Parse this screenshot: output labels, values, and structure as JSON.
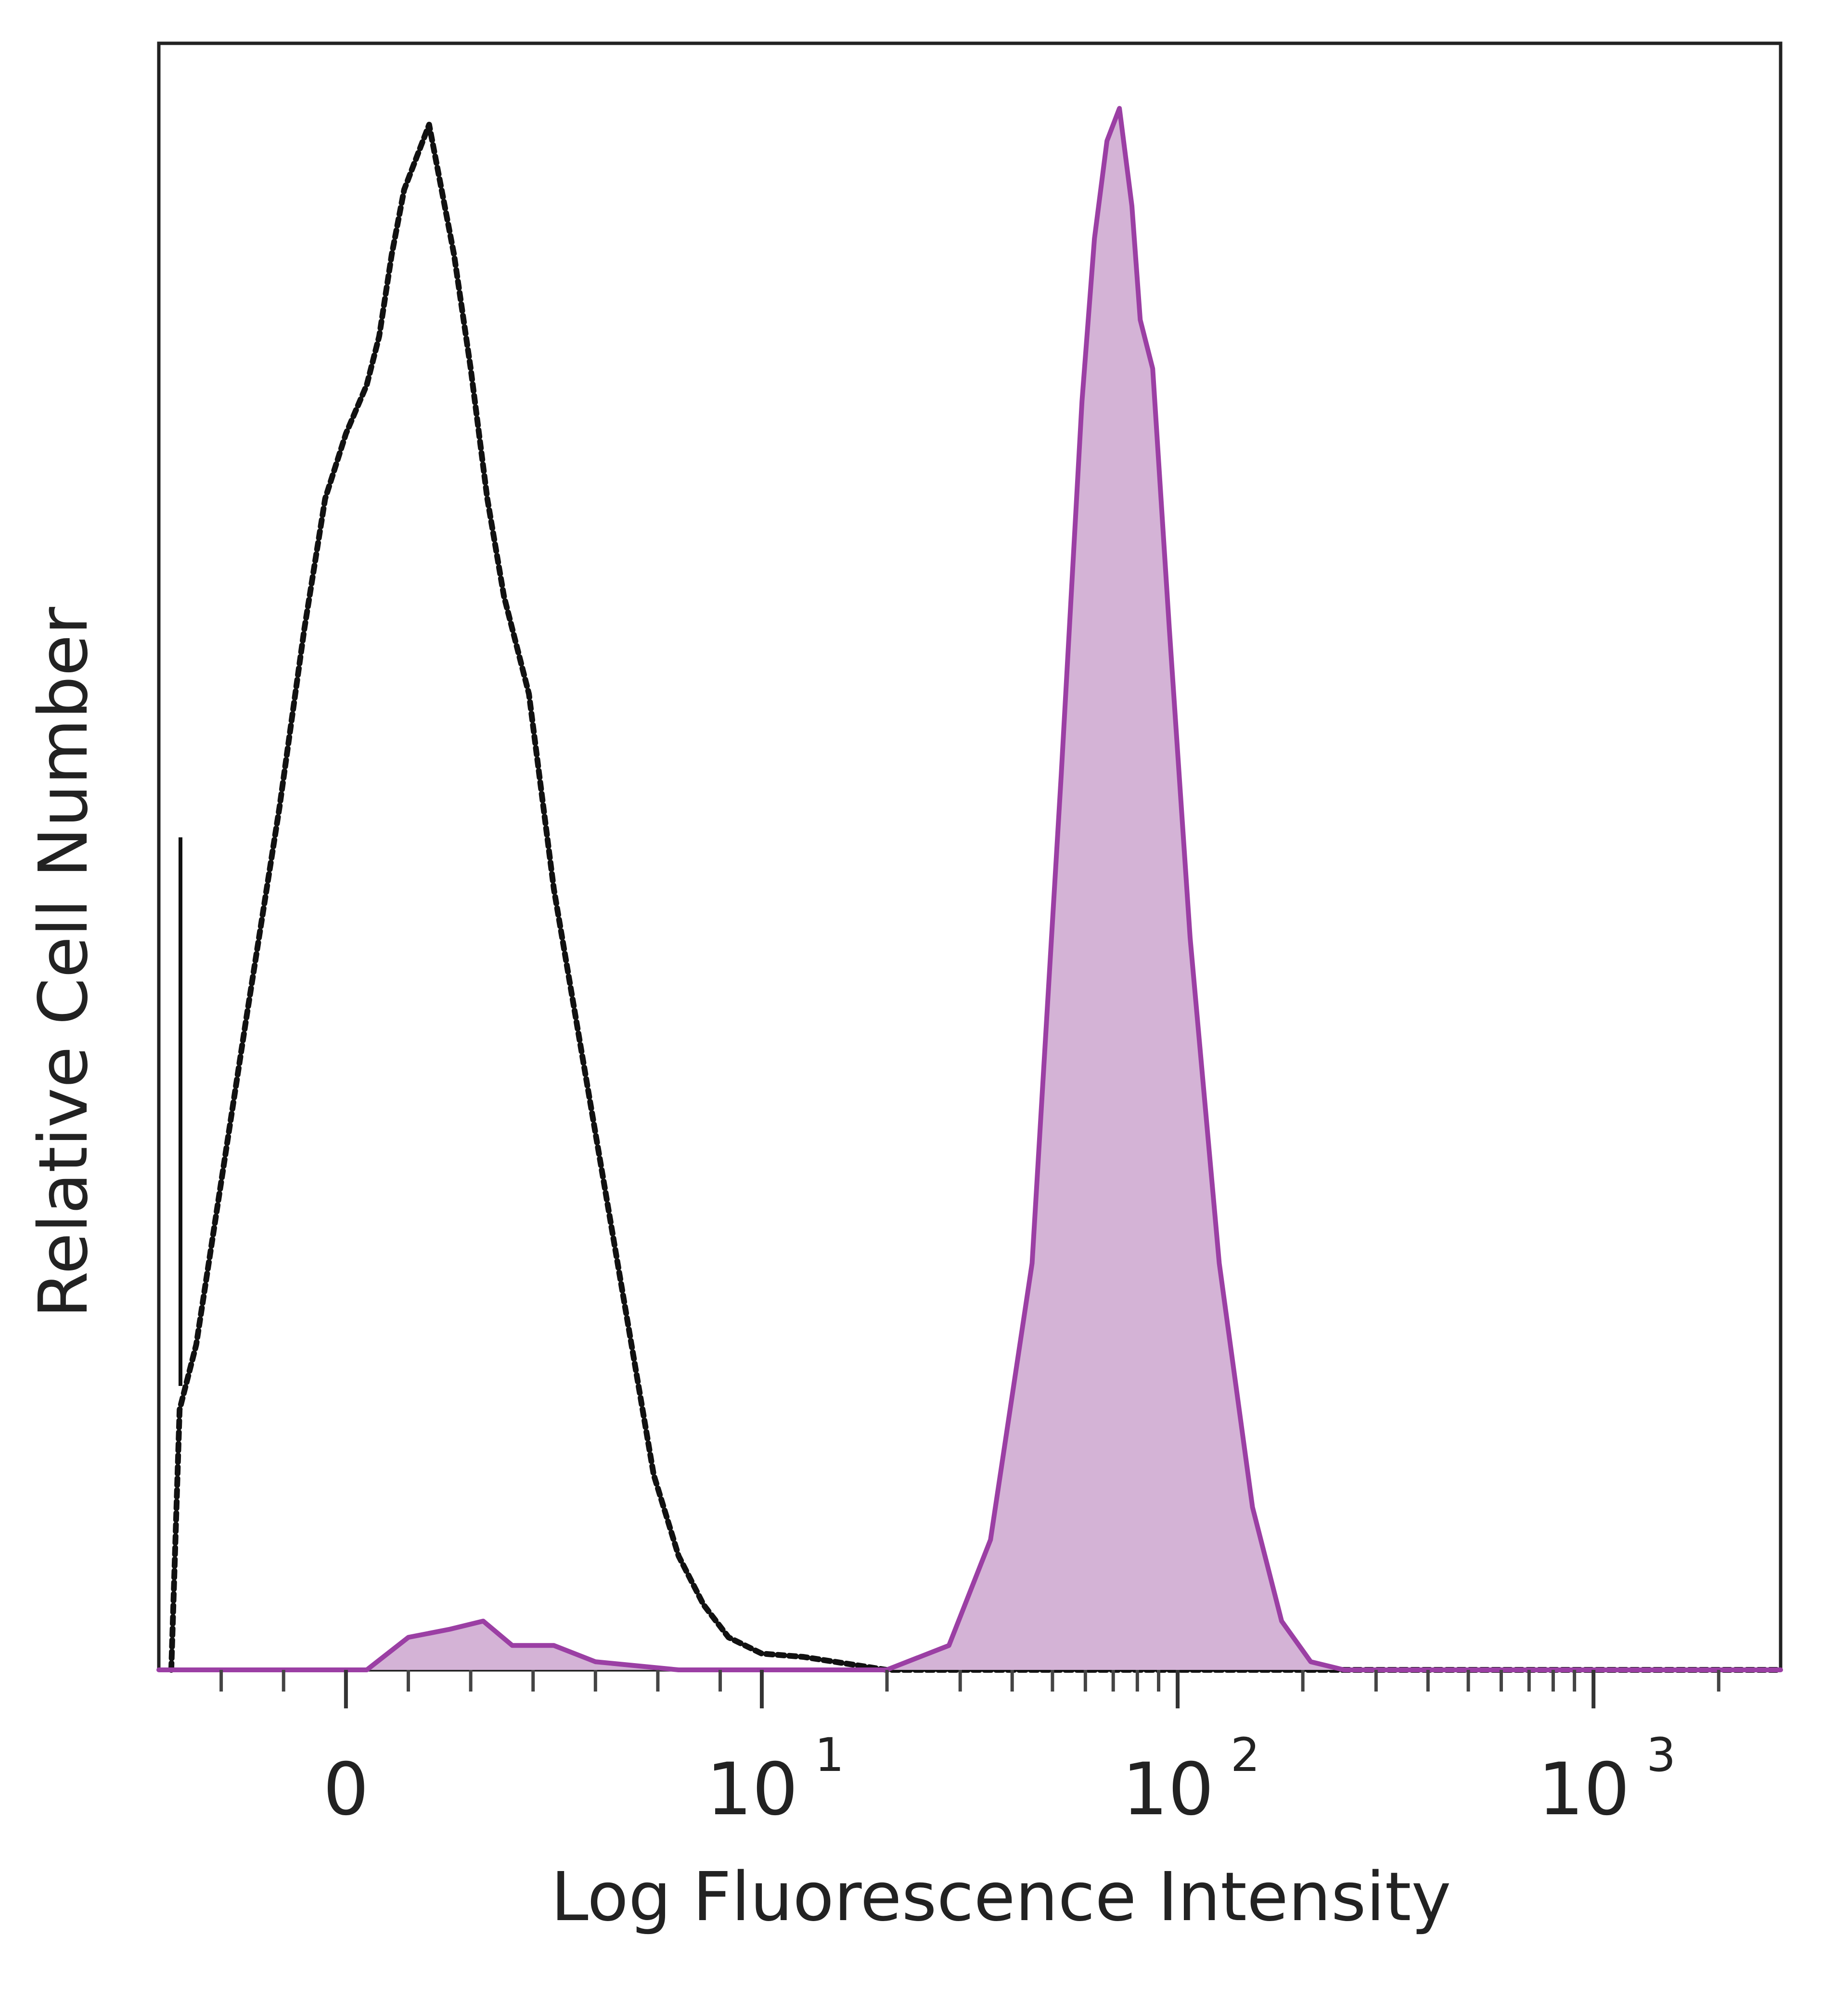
{
  "chart_data": {
    "type": "area",
    "xlabel": "Log Fluorescence Intensity",
    "ylabel": "Relative Cell Number",
    "x_scale": "log",
    "xlim": [
      -0.45,
      3.45
    ],
    "ylim": [
      0,
      1.0
    ],
    "x_ticks": [
      {
        "base": "0",
        "exp": "",
        "pos": 0
      },
      {
        "base": "10",
        "exp": "1",
        "pos": 1
      },
      {
        "base": "10",
        "exp": "2",
        "pos": 2
      },
      {
        "base": "10",
        "exp": "3",
        "pos": 3
      }
    ],
    "grid": false,
    "legend": "none",
    "series": [
      {
        "style": "dotted",
        "color": "#111111",
        "filled": false,
        "points": [
          [
            -0.42,
            0.0
          ],
          [
            -0.4,
            0.16
          ],
          [
            -0.36,
            0.2
          ],
          [
            -0.3,
            0.3
          ],
          [
            -0.24,
            0.4
          ],
          [
            -0.16,
            0.53
          ],
          [
            -0.1,
            0.64
          ],
          [
            -0.05,
            0.72
          ],
          [
            0.0,
            0.76
          ],
          [
            0.05,
            0.79
          ],
          [
            0.08,
            0.82
          ],
          [
            0.11,
            0.87
          ],
          [
            0.14,
            0.91
          ],
          [
            0.17,
            0.93
          ],
          [
            0.2,
            0.95
          ],
          [
            0.23,
            0.91
          ],
          [
            0.26,
            0.87
          ],
          [
            0.3,
            0.8
          ],
          [
            0.34,
            0.72
          ],
          [
            0.38,
            0.66
          ],
          [
            0.44,
            0.6
          ],
          [
            0.5,
            0.48
          ],
          [
            0.56,
            0.39
          ],
          [
            0.62,
            0.3
          ],
          [
            0.68,
            0.21
          ],
          [
            0.74,
            0.12
          ],
          [
            0.8,
            0.07
          ],
          [
            0.86,
            0.04
          ],
          [
            0.92,
            0.02
          ],
          [
            1.0,
            0.01
          ],
          [
            1.1,
            0.008
          ],
          [
            1.3,
            0.0
          ],
          [
            2.5,
            0.0
          ],
          [
            3.45,
            0.0
          ]
        ]
      },
      {
        "style": "solid",
        "color": "#9b3fa4",
        "fill": "#d4b3d6",
        "filled": true,
        "points": [
          [
            -0.45,
            0.0
          ],
          [
            0.05,
            0.0
          ],
          [
            0.15,
            0.02
          ],
          [
            0.25,
            0.025
          ],
          [
            0.33,
            0.03
          ],
          [
            0.4,
            0.015
          ],
          [
            0.5,
            0.015
          ],
          [
            0.6,
            0.005
          ],
          [
            0.8,
            0.0
          ],
          [
            1.3,
            0.0
          ],
          [
            1.45,
            0.015
          ],
          [
            1.55,
            0.08
          ],
          [
            1.65,
            0.25
          ],
          [
            1.72,
            0.55
          ],
          [
            1.77,
            0.78
          ],
          [
            1.8,
            0.88
          ],
          [
            1.83,
            0.94
          ],
          [
            1.86,
            0.96
          ],
          [
            1.89,
            0.9
          ],
          [
            1.91,
            0.83
          ],
          [
            1.94,
            0.8
          ],
          [
            1.98,
            0.64
          ],
          [
            2.03,
            0.45
          ],
          [
            2.1,
            0.25
          ],
          [
            2.18,
            0.1
          ],
          [
            2.25,
            0.03
          ],
          [
            2.32,
            0.005
          ],
          [
            2.4,
            0.0
          ],
          [
            3.45,
            0.0
          ]
        ]
      }
    ]
  }
}
